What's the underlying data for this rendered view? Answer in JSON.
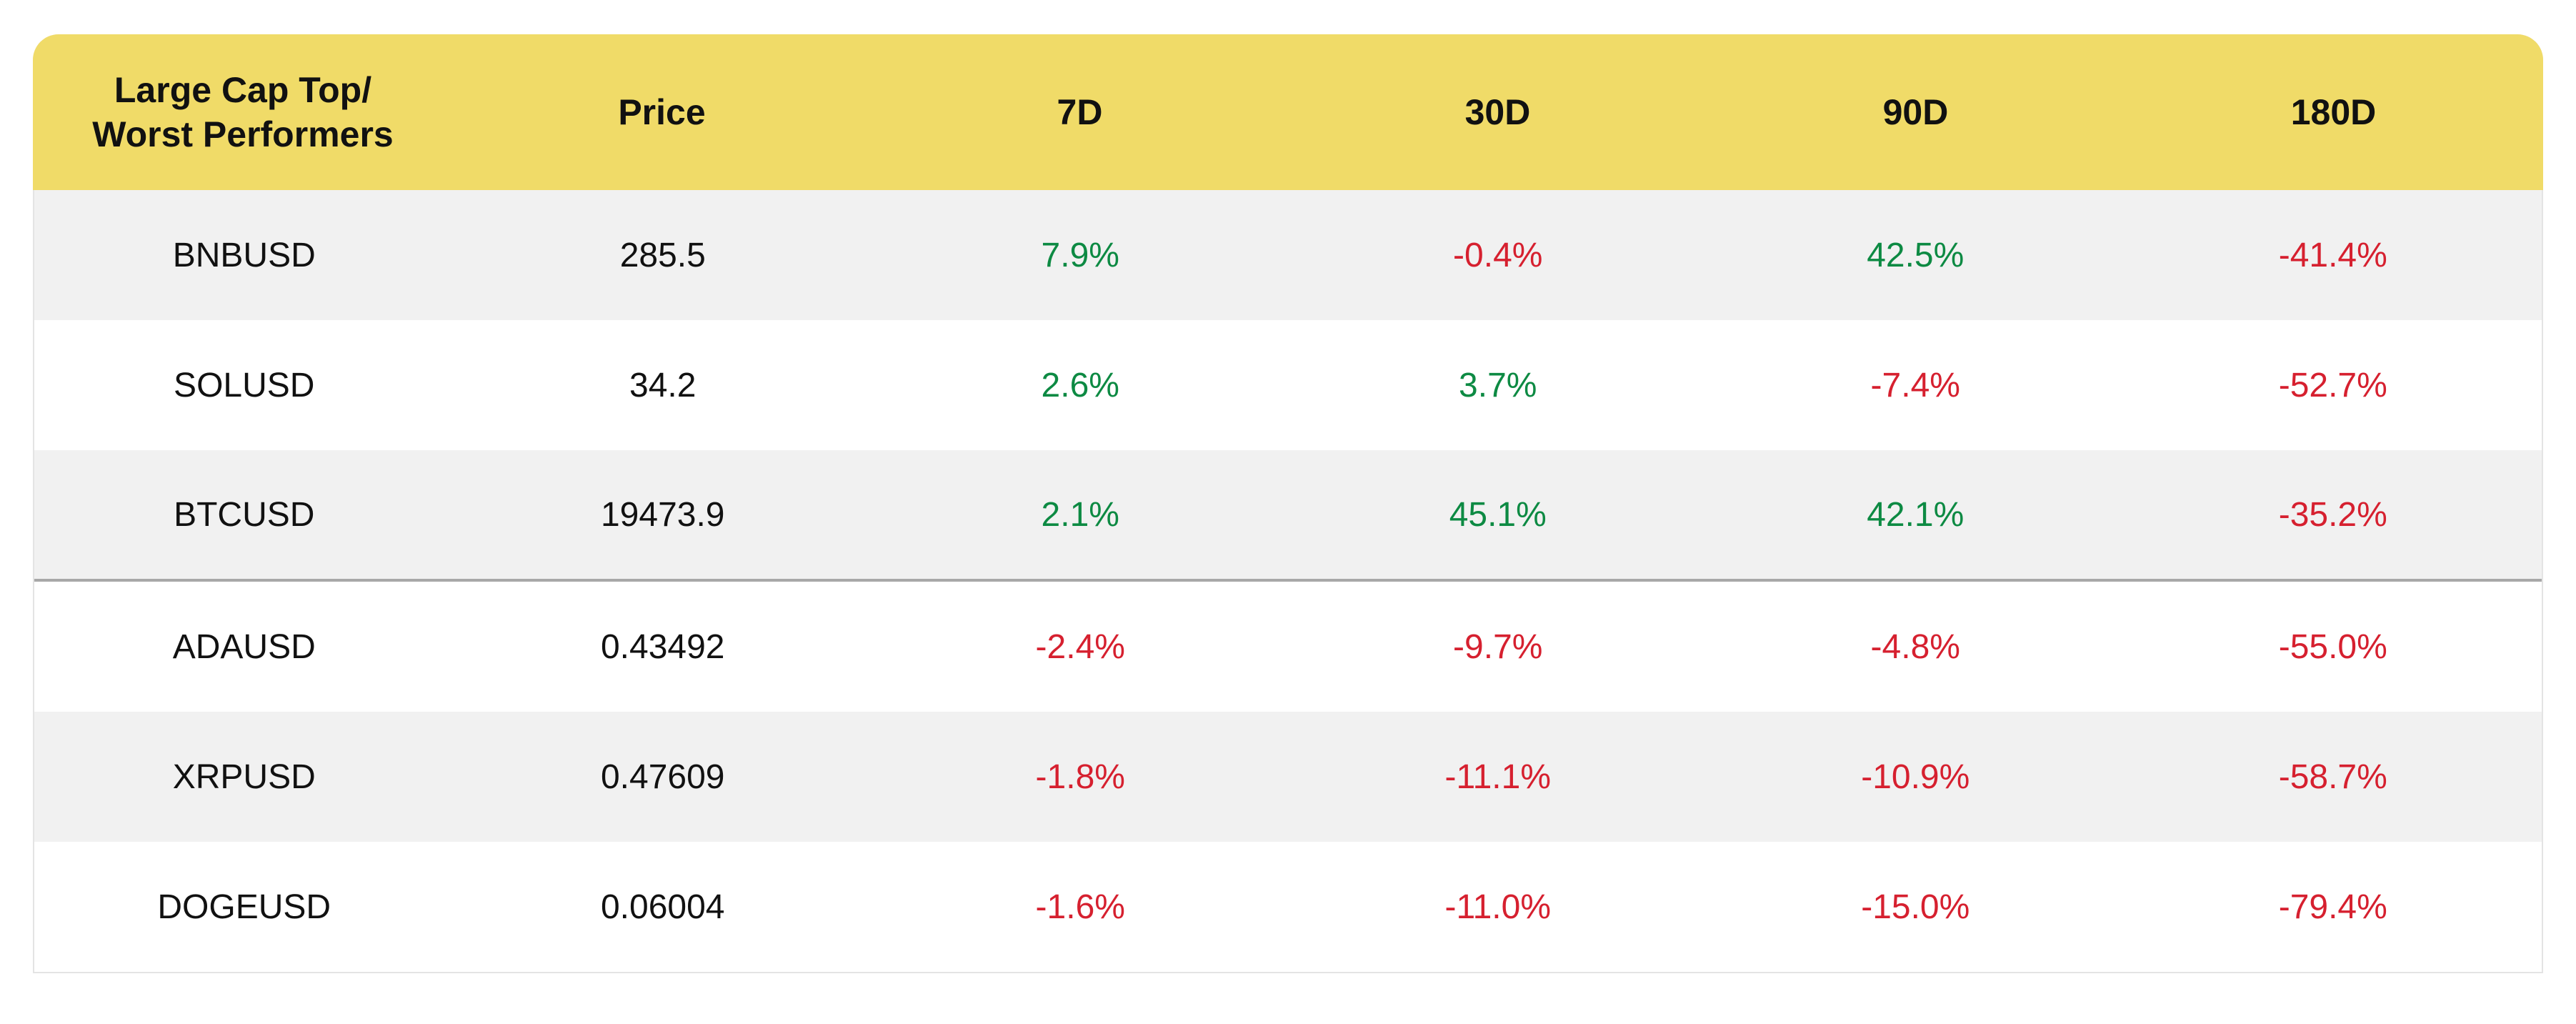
{
  "table": {
    "headers": [
      "Large Cap Top/\nWorst Performers",
      "Price",
      "7D",
      "30D",
      "90D",
      "180D"
    ],
    "header_line1": "Large Cap Top/",
    "header_line2": "Worst Performers",
    "rows": [
      {
        "symbol": "BNBUSD",
        "price": "285.5",
        "d7": "7.9%",
        "d30": "-0.4%",
        "d90": "42.5%",
        "d180": "-41.4%"
      },
      {
        "symbol": "SOLUSD",
        "price": "34.2",
        "d7": "2.6%",
        "d30": "3.7%",
        "d90": "-7.4%",
        "d180": "-52.7%"
      },
      {
        "symbol": "BTCUSD",
        "price": "19473.9",
        "d7": "2.1%",
        "d30": "45.1%",
        "d90": "42.1%",
        "d180": "-35.2%"
      },
      {
        "symbol": "ADAUSD",
        "price": "0.43492",
        "d7": "-2.4%",
        "d30": "-9.7%",
        "d90": "-4.8%",
        "d180": "-55.0%"
      },
      {
        "symbol": "XRPUSD",
        "price": "0.47609",
        "d7": "-1.8%",
        "d30": "-11.1%",
        "d90": "-10.9%",
        "d180": "-58.7%"
      },
      {
        "symbol": "DOGEUSD",
        "price": "0.06004",
        "d7": "-1.6%",
        "d30": "-11.0%",
        "d90": "-15.0%",
        "d180": "-79.4%"
      }
    ]
  },
  "colors": {
    "header_bg": "#f0db68",
    "positive": "#0d8a43",
    "negative": "#d6202f",
    "alt_row": "#f1f1f1"
  }
}
